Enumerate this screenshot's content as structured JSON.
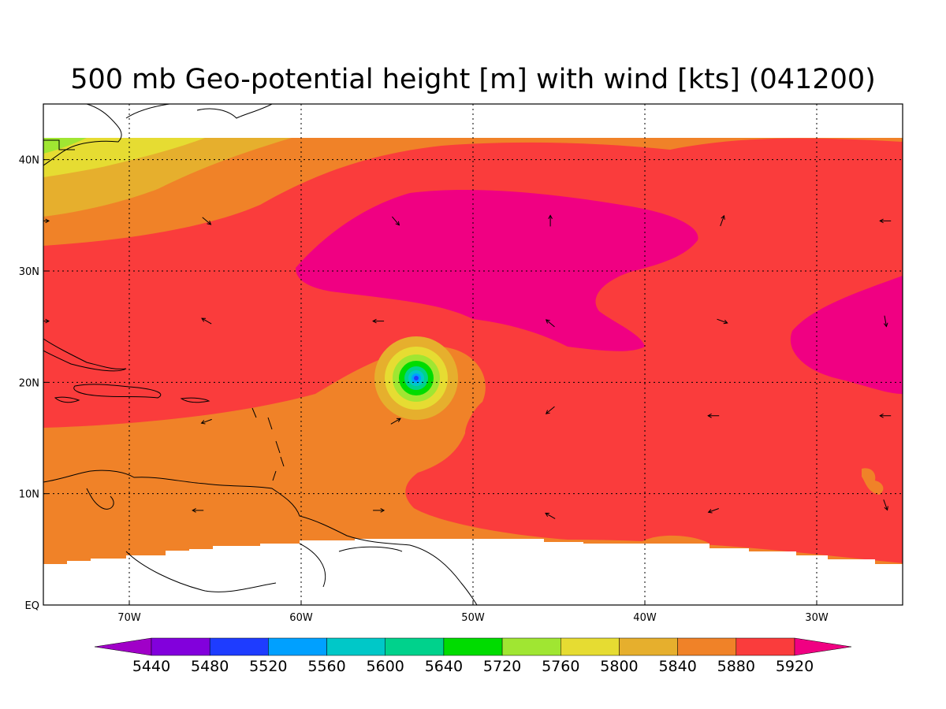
{
  "title": "500 mb Geo-potential height [m] with wind [kts] (041200)",
  "map": {
    "lon_range": [
      -75,
      -25
    ],
    "lat_range": [
      0,
      45
    ],
    "data_lat_range": [
      4,
      42
    ],
    "x_ticks": [
      {
        "lon": -70,
        "label": "70W"
      },
      {
        "lon": -60,
        "label": "60W"
      },
      {
        "lon": -50,
        "label": "50W"
      },
      {
        "lon": -40,
        "label": "40W"
      },
      {
        "lon": -30,
        "label": "30W"
      }
    ],
    "y_ticks": [
      {
        "lat": 0,
        "label": "EQ"
      },
      {
        "lat": 10,
        "label": "10N"
      },
      {
        "lat": 20,
        "label": "20N"
      },
      {
        "lat": 30,
        "label": "30N"
      },
      {
        "lat": 40,
        "label": "40N"
      }
    ],
    "grid": true,
    "cyclone_center": {
      "lon": -53,
      "lat": 20.5
    }
  },
  "colorbar": {
    "labels": [
      "5440",
      "5480",
      "5520",
      "5560",
      "5600",
      "5640",
      "5720",
      "5760",
      "5800",
      "5840",
      "5880",
      "5920"
    ],
    "colors": [
      "#a000c8",
      "#8200dc",
      "#1e3cff",
      "#00a0ff",
      "#00c8c8",
      "#00d28c",
      "#00dc00",
      "#a0e632",
      "#e6dc32",
      "#e6af2d",
      "#f08228",
      "#fa3c3c",
      "#f00082"
    ]
  },
  "wind_arrows": [
    {
      "lon": -75,
      "lat": 34.5,
      "angle": 0
    },
    {
      "lon": -65.5,
      "lat": 34.5,
      "angle": -40
    },
    {
      "lon": -75,
      "lat": 25.5,
      "angle": 0
    },
    {
      "lon": -65.5,
      "lat": 25.5,
      "angle": 150
    },
    {
      "lon": -55.5,
      "lat": 25.5,
      "angle": 180
    },
    {
      "lon": -54.5,
      "lat": 34.5,
      "angle": -50
    },
    {
      "lon": -45.5,
      "lat": 34.5,
      "angle": 90
    },
    {
      "lon": -35.5,
      "lat": 34.5,
      "angle": 70
    },
    {
      "lon": -26,
      "lat": 34.5,
      "angle": 180
    },
    {
      "lon": -45.5,
      "lat": 25.3,
      "angle": 140
    },
    {
      "lon": -35.5,
      "lat": 25.5,
      "angle": -20
    },
    {
      "lon": -26,
      "lat": 25.5,
      "angle": -80
    },
    {
      "lon": -54.5,
      "lat": 16.5,
      "angle": 30
    },
    {
      "lon": -45.5,
      "lat": 17.5,
      "angle": 220
    },
    {
      "lon": -36,
      "lat": 17,
      "angle": 180
    },
    {
      "lon": -26,
      "lat": 17,
      "angle": 180
    },
    {
      "lon": -65.5,
      "lat": 16.5,
      "angle": 200
    },
    {
      "lon": -66,
      "lat": 8.5,
      "angle": 180
    },
    {
      "lon": -55.5,
      "lat": 8.5,
      "angle": 0
    },
    {
      "lon": -45.5,
      "lat": 8,
      "angle": 150
    },
    {
      "lon": -36,
      "lat": 8.5,
      "angle": 200
    },
    {
      "lon": -26,
      "lat": 9,
      "angle": -70
    }
  ]
}
